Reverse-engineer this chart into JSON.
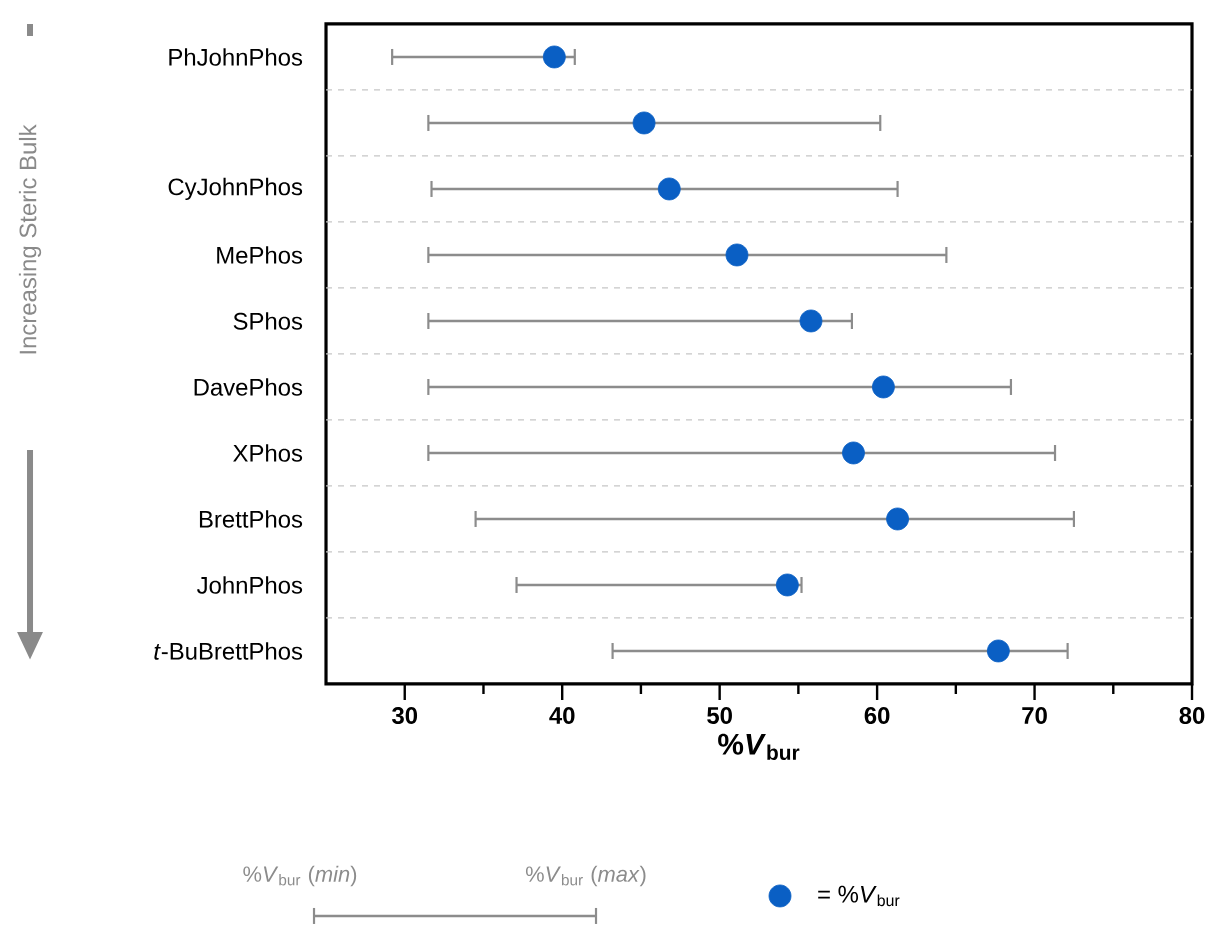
{
  "chart_data": {
    "type": "scatter",
    "orientation": "horizontal",
    "categories": [
      "PhJohnPhos",
      null,
      "CyJohnPhos",
      "MePhos",
      "SPhos",
      "DavePhos",
      "XPhos",
      "BrettPhos",
      "JohnPhos",
      "*t*-BuBrettPhos"
    ],
    "series": [
      {
        "name": "= %*V*$_{bur}$",
        "color": "#0a5fc4",
        "values": [
          39.5,
          45.2,
          46.8,
          51.1,
          55.8,
          60.4,
          58.5,
          61.3,
          54.3,
          67.7
        ],
        "errors": [
          [
            29.2,
            40.8
          ],
          [
            31.5,
            60.2
          ],
          [
            31.7,
            61.3
          ],
          [
            31.5,
            64.4
          ],
          [
            31.5,
            58.4
          ],
          [
            31.5,
            68.5
          ],
          [
            31.5,
            71.3
          ],
          [
            34.5,
            72.5
          ],
          [
            37.1,
            55.2
          ],
          [
            43.2,
            72.1
          ]
        ]
      }
    ],
    "xlabel": "%*V*$_{bur}$",
    "xlim": [
      25,
      80
    ],
    "xticks": [
      30,
      40,
      50,
      60,
      70,
      80
    ],
    "grid": "y",
    "marker": "circle",
    "legend": "bottom",
    "annotations": [
      "Increasing Steric Bulk",
      "%*V*$_{bur}$ (*min*)",
      "%*V*$_{bur}$ (*max*)"
    ]
  }
}
